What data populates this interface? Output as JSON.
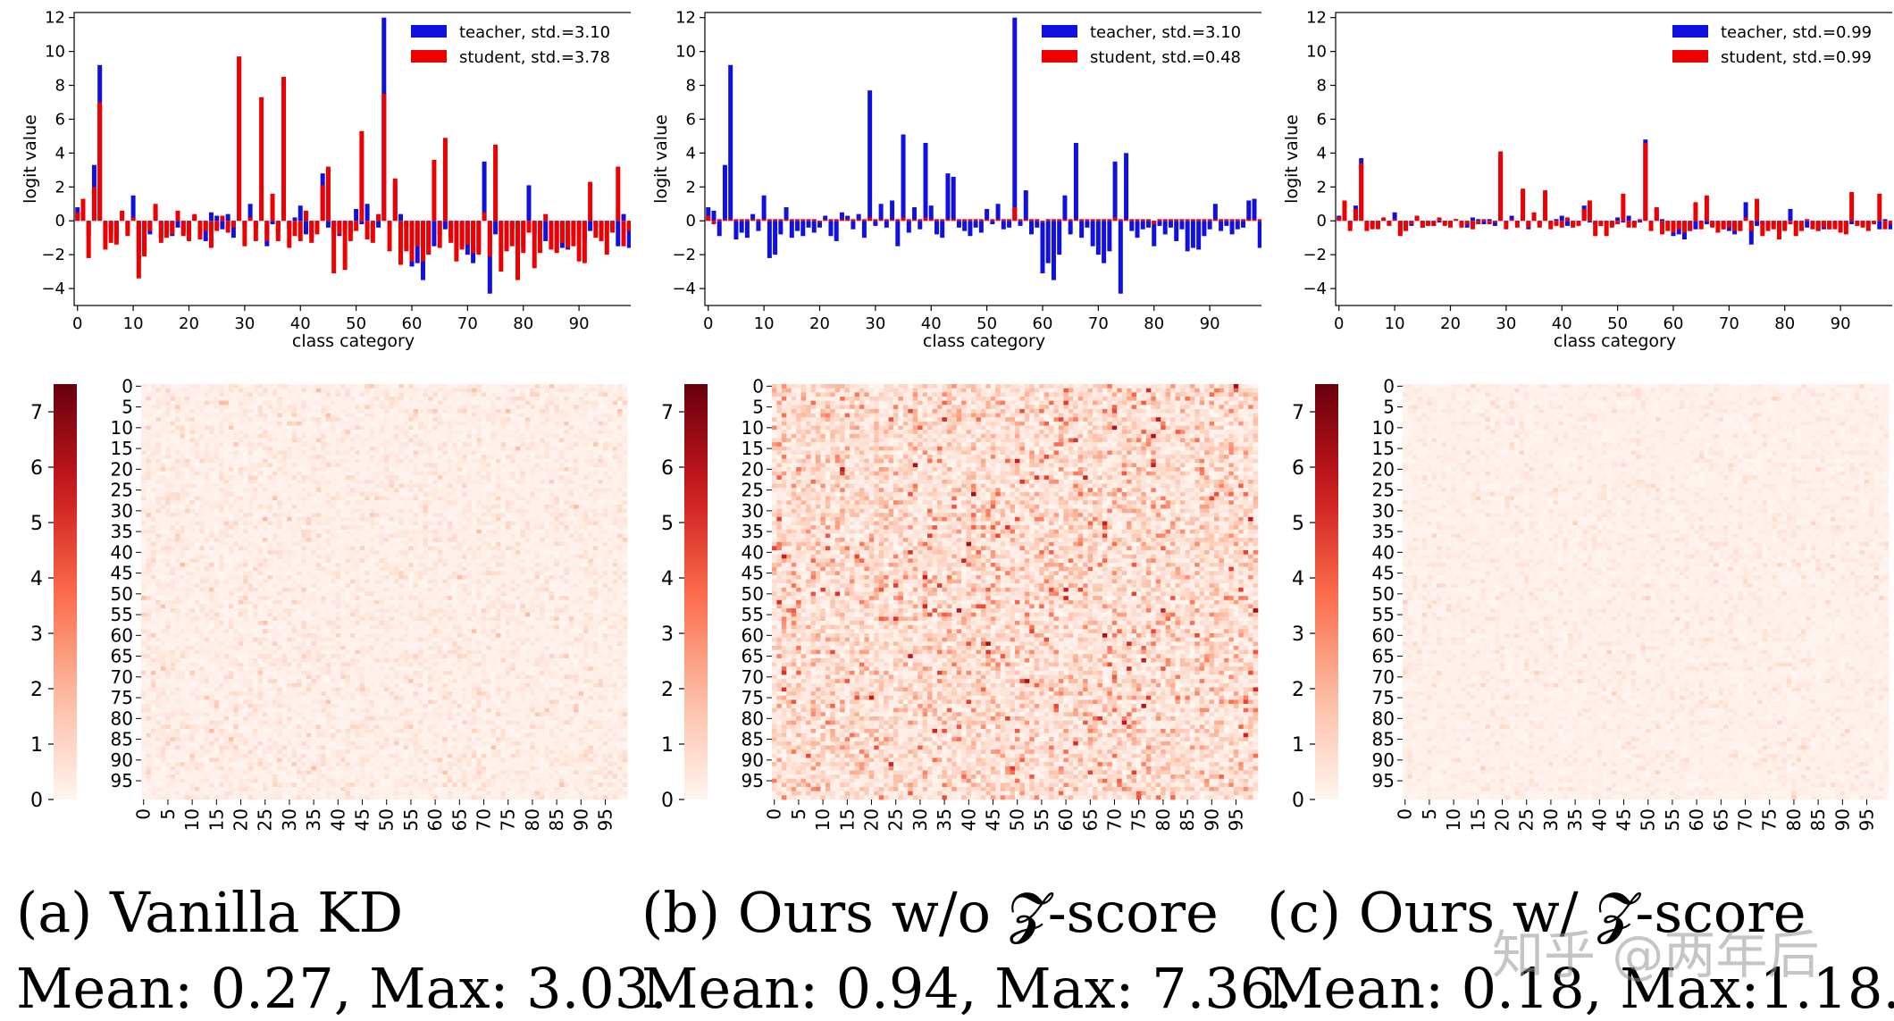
{
  "panels": [
    {
      "caption": "(a) Vanilla KD",
      "stats": "Mean: 0.27, Max: 3.03.",
      "mean": 0.27,
      "max": 3.03,
      "bar": {
        "type": "bar",
        "xlabel": "class category",
        "ylabel": "logit value",
        "xticks": [
          "0",
          "10",
          "20",
          "30",
          "40",
          "50",
          "60",
          "70",
          "80",
          "90"
        ],
        "yticks": [
          "12",
          "10",
          "8",
          "6",
          "4",
          "2",
          "0",
          "−2",
          "−4"
        ],
        "ylim": [
          -5,
          12.3
        ],
        "xlim": [
          -0.6,
          99.6
        ],
        "legend_position": "top-right",
        "series": [
          {
            "name": "teacher, std.=3.10",
            "color": "#1010e0",
            "values": [
              0.8,
              0.6,
              -0.9,
              3.3,
              9.2,
              -1.1,
              -0.7,
              -1.0,
              0.4,
              -0.6,
              1.5,
              -2.2,
              -2.0,
              -0.8,
              0.8,
              -1.0,
              -0.6,
              -0.9,
              -0.4,
              -0.7,
              -0.4,
              0.3,
              -0.9,
              -1.2,
              0.5,
              0.3,
              -0.5,
              0.4,
              -1.0,
              9.7,
              -0.3,
              1.0,
              -0.4,
              1.2,
              -1.5,
              -0.2,
              -0.7,
              0.8,
              -0.5,
              0.2,
              0.9,
              -0.8,
              -1.0,
              -0.4,
              2.8,
              -0.4,
              -0.6,
              -0.9,
              -0.4,
              -0.7,
              0.7,
              -0.2,
              1.0,
              -0.5,
              -0.4,
              12.0,
              -0.3,
              2.2,
              0.4,
              -0.4,
              -2.7,
              -2.5,
              -3.5,
              -2.0,
              -1.5,
              -0.8,
              -0.5,
              -1.0,
              -0.4,
              -1.5,
              -2.0,
              -2.5,
              -1.8,
              3.5,
              -4.3,
              -0.8,
              -0.6,
              -1.0,
              -0.5,
              -0.4,
              -1.5,
              2.1,
              -0.8,
              -0.4,
              -1.2,
              -0.5,
              -1.8,
              -1.6,
              -1.7,
              -0.9,
              -0.5,
              -1.2,
              -0.6,
              -0.3,
              -0.8,
              -0.5,
              -0.4,
              -1.5,
              0.4,
              -1.6
            ]
          },
          {
            "name": "student, std.=3.78",
            "color": "#ee0000",
            "values": [
              0.5,
              1.3,
              -2.2,
              2.0,
              7.0,
              -1.7,
              -1.3,
              -1.4,
              0.6,
              -0.9,
              0.2,
              -3.4,
              -2.1,
              -0.6,
              1.0,
              -1.3,
              -1.0,
              -0.8,
              0.6,
              -0.9,
              -1.2,
              0.4,
              -1.1,
              -0.6,
              -1.6,
              -0.6,
              0.3,
              -0.7,
              -0.4,
              9.7,
              -1.5,
              0.2,
              -1.2,
              7.3,
              -1.2,
              1.6,
              -1.2,
              8.5,
              -1.6,
              -0.9,
              -1.2,
              0.6,
              -1.3,
              -0.8,
              2.1,
              3.2,
              -3.1,
              -0.8,
              -2.9,
              -1.2,
              -0.6,
              5.3,
              -1.1,
              -1.3,
              0.4,
              7.5,
              -1.8,
              2.5,
              -2.6,
              -1.8,
              -2.4,
              -1.5,
              -2.4,
              -2.0,
              3.6,
              -1.6,
              4.9,
              -1.3,
              -2.4,
              -1.7,
              -1.4,
              -1.9,
              -2.0,
              0.5,
              -2.1,
              4.5,
              -3.0,
              -1.8,
              -1.5,
              -3.5,
              -1.9,
              -0.7,
              -2.8,
              -1.9,
              0.4,
              -1.7,
              -1.9,
              -1.3,
              -1.6,
              -1.5,
              -2.4,
              -2.5,
              2.3,
              -1.0,
              -1.2,
              -2.0,
              -0.7,
              3.2,
              -1.5,
              -0.6
            ]
          }
        ]
      },
      "heatmap": {
        "type": "heatmap",
        "colorbar_ticks": [
          "0",
          "1",
          "2",
          "3",
          "4",
          "5",
          "6",
          "7"
        ],
        "vmin": 0,
        "vmax": 7.5,
        "tick_labels": [
          "0",
          "5",
          "10",
          "15",
          "20",
          "25",
          "30",
          "35",
          "40",
          "45",
          "50",
          "55",
          "60",
          "65",
          "70",
          "75",
          "80",
          "85",
          "90",
          "95"
        ],
        "size": 100
      }
    },
    {
      "caption": "(b) Ours w/o 𝓩-score",
      "stats": "Mean: 0.94, Max: 7.36.",
      "mean": 0.94,
      "max": 7.36,
      "bar": {
        "type": "bar",
        "xlabel": "class category",
        "ylabel": "logit value",
        "xticks": [
          "0",
          "10",
          "20",
          "30",
          "40",
          "50",
          "60",
          "70",
          "80",
          "90"
        ],
        "yticks": [
          "12",
          "10",
          "8",
          "6",
          "4",
          "2",
          "0",
          "−2",
          "−4"
        ],
        "ylim": [
          -5,
          12.3
        ],
        "xlim": [
          -0.6,
          99.6
        ],
        "legend_position": "top-right",
        "series": [
          {
            "name": "teacher, std.=3.10",
            "color": "#1010e0",
            "values": [
              0.8,
              0.6,
              -0.9,
              3.3,
              9.2,
              -1.1,
              -0.7,
              -1.0,
              0.4,
              -0.6,
              1.5,
              -2.2,
              -2.0,
              -0.8,
              0.8,
              -1.0,
              -0.6,
              -0.9,
              -0.4,
              -0.7,
              -0.4,
              0.3,
              -0.9,
              -1.2,
              0.5,
              0.3,
              -0.5,
              0.4,
              -1.0,
              7.7,
              -0.3,
              1.0,
              -0.4,
              1.2,
              -1.5,
              5.1,
              -0.7,
              0.8,
              -0.5,
              4.6,
              0.9,
              -0.8,
              -1.0,
              2.8,
              2.6,
              -0.4,
              -0.6,
              -0.9,
              -0.4,
              -0.7,
              0.7,
              -0.2,
              1.0,
              -0.5,
              -0.4,
              12.0,
              -0.3,
              1.8,
              -0.8,
              -0.4,
              -3.1,
              -2.5,
              -3.5,
              -2.0,
              1.5,
              -0.8,
              4.6,
              -1.0,
              -0.4,
              -1.5,
              -2.0,
              -2.5,
              -1.8,
              3.5,
              -4.3,
              4.0,
              -0.6,
              -1.0,
              -0.5,
              -0.4,
              -1.5,
              -0.3,
              -0.8,
              -0.4,
              -1.2,
              -0.5,
              -1.8,
              -1.6,
              -1.7,
              -0.9,
              -0.5,
              1.0,
              -0.6,
              -0.3,
              -0.8,
              -0.5,
              -0.4,
              1.2,
              1.3,
              -1.6
            ]
          },
          {
            "name": "student, std.=0.48",
            "color": "#ee0000",
            "values": [
              0.3,
              -0.2,
              0.1,
              0.1,
              0.1,
              0.1,
              0.1,
              0.1,
              0.1,
              0.1,
              0.1,
              0.1,
              0.1,
              0.1,
              0.1,
              0.1,
              0.1,
              0.1,
              0.1,
              0.1,
              -0.1,
              0.1,
              0.1,
              0.1,
              0.1,
              0.1,
              0.1,
              0.1,
              0.1,
              0.2,
              0.1,
              0.1,
              0.1,
              0.1,
              0.1,
              0.2,
              0.1,
              0.1,
              0.1,
              0.2,
              0.1,
              0.1,
              0.1,
              0.1,
              0.1,
              0.1,
              0.1,
              0.1,
              0.1,
              0.1,
              0.1,
              0.1,
              0.1,
              0.1,
              0.1,
              0.8,
              0.1,
              0.1,
              0.1,
              0.1,
              -0.1,
              0.1,
              0.1,
              0.1,
              0.1,
              0.1,
              0.1,
              0.1,
              0.1,
              0.1,
              0.1,
              0.1,
              0.1,
              0.2,
              0.1,
              0.1,
              0.1,
              0.1,
              0.1,
              0.1,
              -0.2,
              0.1,
              0.1,
              0.1,
              0.1,
              0.1,
              0.1,
              0.1,
              0.1,
              0.1,
              0.1,
              0.1,
              0.1,
              0.1,
              0.1,
              0.1,
              0.1,
              0.1,
              0.1,
              0.1
            ]
          }
        ]
      },
      "heatmap": {
        "type": "heatmap",
        "colorbar_ticks": [
          "0",
          "1",
          "2",
          "3",
          "4",
          "5",
          "6",
          "7"
        ],
        "vmin": 0,
        "vmax": 7.5,
        "tick_labels": [
          "0",
          "5",
          "10",
          "15",
          "20",
          "25",
          "30",
          "35",
          "40",
          "45",
          "50",
          "55",
          "60",
          "65",
          "70",
          "75",
          "80",
          "85",
          "90",
          "95"
        ],
        "size": 100
      }
    },
    {
      "caption": "(c) Ours w/ 𝓩-score",
      "stats": "Mean: 0.18, Max:1.18.",
      "mean": 0.18,
      "max": 1.18,
      "bar": {
        "type": "bar",
        "xlabel": "class category",
        "ylabel": "logit value",
        "xticks": [
          "0",
          "10",
          "20",
          "30",
          "40",
          "50",
          "60",
          "70",
          "80",
          "90"
        ],
        "yticks": [
          "12",
          "10",
          "8",
          "6",
          "4",
          "2",
          "0",
          "−2",
          "−4"
        ],
        "ylim": [
          -5,
          12.3
        ],
        "xlim": [
          -0.6,
          99.6
        ],
        "legend_position": "top-right",
        "series": [
          {
            "name": "teacher, std.=0.99",
            "color": "#1010e0",
            "values": [
              0.3,
              0.2,
              -0.3,
              0.9,
              3.7,
              -0.4,
              -0.2,
              -0.4,
              0.1,
              -0.2,
              0.5,
              -0.7,
              -0.6,
              -0.3,
              0.3,
              -0.4,
              -0.2,
              -0.3,
              -0.1,
              -0.2,
              -0.1,
              0.1,
              -0.3,
              -0.4,
              0.2,
              0.1,
              -0.2,
              0.1,
              -0.3,
              3.8,
              -0.1,
              0.3,
              -0.1,
              0.4,
              -0.5,
              0.2,
              -0.2,
              0.3,
              -0.2,
              0.1,
              0.3,
              -0.3,
              -0.3,
              -0.1,
              0.9,
              -0.1,
              -0.2,
              -0.3,
              -0.1,
              -0.2,
              0.2,
              -0.1,
              0.3,
              -0.2,
              -0.1,
              4.8,
              -0.1,
              0.7,
              0.1,
              -0.1,
              -0.9,
              -0.8,
              -1.1,
              -0.6,
              -0.5,
              -0.3,
              -0.2,
              -0.3,
              -0.1,
              -0.5,
              -0.6,
              -0.8,
              -0.6,
              1.1,
              -1.4,
              -0.3,
              -0.2,
              -0.3,
              -0.2,
              -0.1,
              -0.5,
              0.7,
              -0.3,
              -0.1,
              -0.4,
              -0.2,
              -0.6,
              -0.5,
              -0.5,
              -0.3,
              -0.2,
              -0.4,
              -0.2,
              -0.1,
              -0.3,
              -0.2,
              -0.1,
              -0.5,
              0.1,
              -0.5
            ]
          },
          {
            "name": "student, std.=0.99",
            "color": "#ee0000",
            "values": [
              0.2,
              1.2,
              -0.6,
              0.7,
              3.4,
              -0.6,
              -0.5,
              -0.5,
              0.2,
              -0.3,
              0.1,
              -0.9,
              -0.6,
              -0.2,
              0.3,
              -0.4,
              -0.3,
              -0.3,
              0.2,
              -0.3,
              -0.4,
              0.1,
              -0.4,
              -0.2,
              -0.5,
              -0.2,
              0.1,
              -0.2,
              -0.1,
              4.1,
              -0.5,
              0.1,
              -0.4,
              1.9,
              -0.4,
              0.5,
              -0.4,
              1.8,
              -0.5,
              -0.3,
              -0.4,
              0.2,
              -0.4,
              -0.3,
              0.7,
              1.2,
              -0.9,
              -0.3,
              -0.9,
              -0.4,
              -0.2,
              1.6,
              -0.4,
              -0.4,
              0.1,
              4.6,
              -0.6,
              0.8,
              -0.8,
              -0.6,
              -0.7,
              -0.5,
              -0.7,
              -0.6,
              1.1,
              -0.5,
              1.5,
              -0.4,
              -0.7,
              -0.5,
              -0.4,
              -0.6,
              -0.6,
              0.2,
              -0.6,
              1.3,
              -0.9,
              -0.6,
              -0.5,
              -1.1,
              -0.6,
              -0.2,
              -0.9,
              -0.6,
              0.1,
              -0.5,
              -0.6,
              -0.4,
              -0.5,
              -0.5,
              -0.7,
              -0.8,
              1.7,
              -0.3,
              -0.4,
              -0.6,
              -0.2,
              1.6,
              -0.5,
              -0.2
            ]
          }
        ]
      },
      "heatmap": {
        "type": "heatmap",
        "colorbar_ticks": [
          "0",
          "1",
          "2",
          "3",
          "4",
          "5",
          "6",
          "7"
        ],
        "vmin": 0,
        "vmax": 7.5,
        "tick_labels": [
          "0",
          "5",
          "10",
          "15",
          "20",
          "25",
          "30",
          "35",
          "40",
          "45",
          "50",
          "55",
          "60",
          "65",
          "70",
          "75",
          "80",
          "85",
          "90",
          "95"
        ],
        "size": 100
      }
    }
  ],
  "watermark": "知乎 @两年后"
}
